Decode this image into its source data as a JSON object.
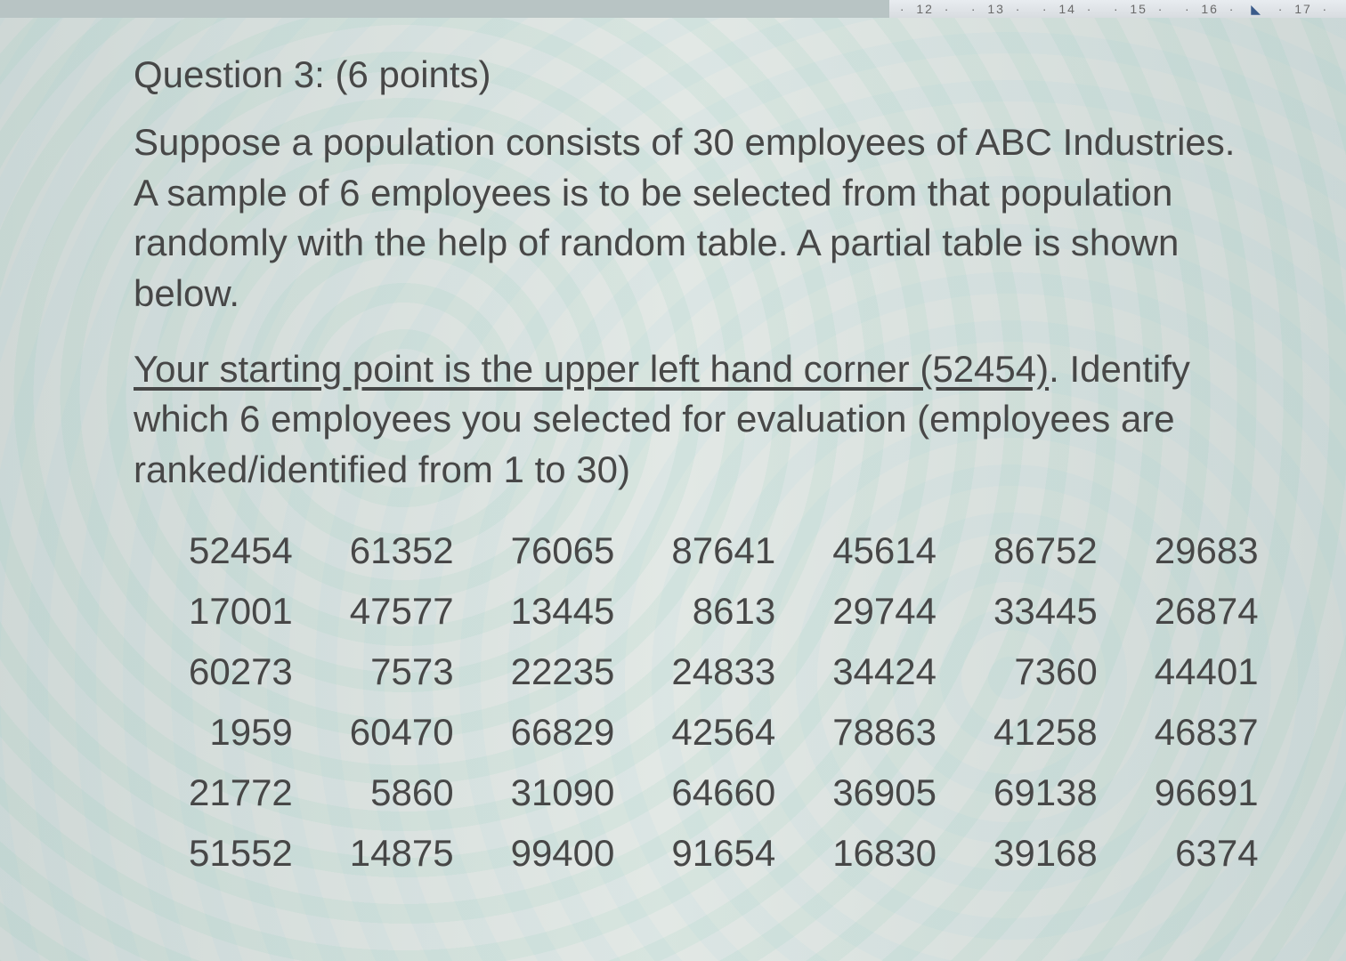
{
  "ruler": {
    "marks": [
      "12",
      "13",
      "14",
      "15",
      "16",
      "17"
    ],
    "tab_stop_after_index": 4
  },
  "question": {
    "title": "Question 3: (6 points)",
    "para1": "Suppose a population consists of 30 employees of ABC Industries. A sample of 6 employees is to be selected from that population randomly with the help of random table. A partial table is shown below.",
    "para2_underlined": "Your starting point is the upper left hand corner (52454)",
    "para2_rest": ". Identify which 6 employees you selected for evaluation (employees are ranked/identified from 1 to 30)"
  },
  "table": {
    "type": "table",
    "columns": 7,
    "col_align": "right",
    "cell_fontsize": 42,
    "text_color": "#474747",
    "rows": [
      [
        "52454",
        "61352",
        "76065",
        "87641",
        "45614",
        "86752",
        "29683"
      ],
      [
        "17001",
        "47577",
        "13445",
        "8613",
        "29744",
        "33445",
        "26874"
      ],
      [
        "60273",
        "7573",
        "22235",
        "24833",
        "34424",
        "7360",
        "44401"
      ],
      [
        "1959",
        "60470",
        "66829",
        "42564",
        "78863",
        "41258",
        "46837"
      ],
      [
        "21772",
        "5860",
        "31090",
        "64660",
        "36905",
        "69138",
        "96691"
      ],
      [
        "51552",
        "14875",
        "99400",
        "91654",
        "16830",
        "39168",
        "6374"
      ]
    ]
  },
  "style": {
    "page_bg_tint": "#cfd8d6",
    "text_color": "#474747",
    "title_fontsize": 42,
    "body_fontsize": 42,
    "font_family": "Arial"
  }
}
